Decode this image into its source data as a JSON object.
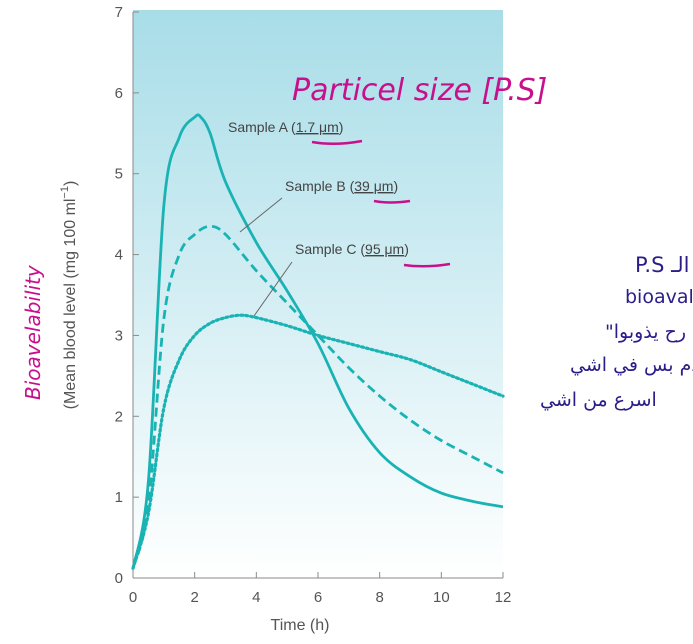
{
  "chart_data": {
    "type": "line",
    "xlabel": "Time (h)",
    "ylabel": "(Mean blood level (mg 100 ml",
    "ylabel_sup": "−1",
    "ylabel_close": ")",
    "xlim": [
      0,
      12
    ],
    "ylim": [
      0,
      7
    ],
    "x_ticks": [
      "0",
      "2",
      "4",
      "6",
      "8",
      "10",
      "12"
    ],
    "y_ticks": [
      "0",
      "1",
      "2",
      "3",
      "4",
      "5",
      "6",
      "7"
    ],
    "grid": false,
    "series": [
      {
        "name": "Sample A (1.7 μm)",
        "line_style": "solid",
        "x": [
          0,
          0.5,
          1.0,
          1.5,
          2.0,
          2.2,
          2.5,
          3,
          4,
          5,
          6,
          7,
          8,
          9,
          10,
          11,
          12
        ],
        "y": [
          0.12,
          1.2,
          4.6,
          5.45,
          5.7,
          5.7,
          5.5,
          4.9,
          4.15,
          3.55,
          2.9,
          2.1,
          1.55,
          1.25,
          1.05,
          0.95,
          0.88
        ]
      },
      {
        "name": "Sample B (39 μm)",
        "line_style": "dashed",
        "x": [
          0,
          0.5,
          1.0,
          1.5,
          2.0,
          2.5,
          3,
          4,
          5,
          6,
          7,
          8,
          9,
          10,
          11,
          12
        ],
        "y": [
          0.12,
          0.9,
          3.2,
          4.0,
          4.25,
          4.35,
          4.25,
          3.8,
          3.4,
          3.0,
          2.6,
          2.25,
          1.95,
          1.7,
          1.5,
          1.3
        ]
      },
      {
        "name": "Sample C (95 μm)",
        "line_style": "dotted",
        "x": [
          0,
          0.5,
          1.0,
          1.5,
          2.0,
          2.5,
          3,
          3.5,
          4,
          5,
          6,
          7,
          8,
          9,
          10,
          11,
          12
        ],
        "y": [
          0.12,
          0.8,
          2.1,
          2.7,
          3.0,
          3.15,
          3.22,
          3.25,
          3.22,
          3.12,
          3.0,
          2.9,
          2.8,
          2.7,
          2.55,
          2.4,
          2.25
        ]
      }
    ],
    "labels": [
      {
        "text": "Sample A (",
        "underlined": "1.7 μm",
        "close": ")"
      },
      {
        "text": "Sample B (",
        "underlined": "39 μm",
        "close": ")"
      },
      {
        "text": "Sample C (",
        "underlined": "95 μm",
        "close": ")"
      }
    ],
    "colors": {
      "curve": "#1ab3b3",
      "bg_top": "#a8dde8",
      "bg_bottom": "#ffffff",
      "axis": "#8a8a8a",
      "handwriting_pink": "#c8108c",
      "handwriting_dark": "#2a1d8a"
    }
  },
  "annotations": {
    "handwritten_title": "Particel size [P.S]",
    "handwritten_ylabel": "Bioavelability",
    "handwritten_note_lines": [
      "كل ما زاد الـ P.S",
      "زادت الـ bioavalibity",
      "\"صح كلهم رح يذوبوا\"",
      "بالدم بس في اشي",
      "اسرع من اشي"
    ]
  }
}
